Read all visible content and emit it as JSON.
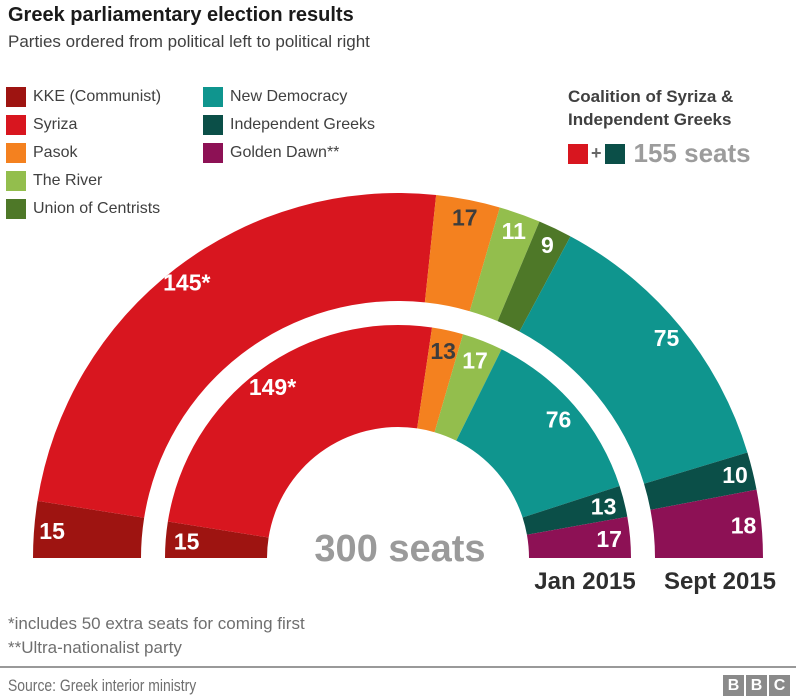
{
  "header": {
    "title": "Greek parliamentary election results",
    "subtitle": "Parties ordered from political left to political right"
  },
  "legend": {
    "column1": [
      {
        "label": "KKE (Communist)",
        "color": "#9e1411"
      },
      {
        "label": "Syriza",
        "color": "#d8161f"
      },
      {
        "label": "Pasok",
        "color": "#f4811f"
      },
      {
        "label": "The River",
        "color": "#93be4d"
      },
      {
        "label": "Union of Centrists",
        "color": "#4e7828"
      }
    ],
    "column2": [
      {
        "label": "New Democracy",
        "color": "#0f958e"
      },
      {
        "label": "Independent Greeks",
        "color": "#0b4f48"
      },
      {
        "label": "Golden Dawn**",
        "color": "#8d1155"
      }
    ]
  },
  "coalition": {
    "heading_line1": "Coalition of Syriza &",
    "heading_line2": "Independent Greeks",
    "plus": "+",
    "swatch_colors": [
      "#d8161f",
      "#0b4f48"
    ],
    "seats_label": "155 seats"
  },
  "chart_data": {
    "type": "half-donut",
    "title": "Greek parliamentary election results",
    "center_label": "300 seats",
    "total_seats": 300,
    "legend_position": "top-left",
    "rings": [
      {
        "axis_label": "Sept 2015",
        "outer_radius": 365,
        "inner_radius": 257,
        "label_radius": 347,
        "segments": [
          {
            "party": "KKE (Communist)",
            "seats": 15,
            "label": "15",
            "color": "#9e1411",
            "label_color": "#ffffff"
          },
          {
            "party": "Syriza",
            "seats": 145,
            "label": "145*",
            "color": "#d8161f",
            "label_color": "#ffffff"
          },
          {
            "party": "Pasok",
            "seats": 17,
            "label": "17",
            "color": "#f4811f",
            "label_color": "#3d3d3d"
          },
          {
            "party": "The River",
            "seats": 11,
            "label": "11",
            "color": "#93be4d",
            "label_color": "#ffffff"
          },
          {
            "party": "Union of Centrists",
            "seats": 9,
            "label": "9",
            "color": "#4e7828",
            "label_color": "#ffffff"
          },
          {
            "party": "New Democracy",
            "seats": 75,
            "label": "75",
            "color": "#0f958e",
            "label_color": "#ffffff"
          },
          {
            "party": "Independent Greeks",
            "seats": 10,
            "label": "10",
            "color": "#0b4f48",
            "label_color": "#ffffff"
          },
          {
            "party": "Golden Dawn",
            "seats": 18,
            "label": "18",
            "color": "#8d1155",
            "label_color": "#ffffff"
          }
        ]
      },
      {
        "axis_label": "Jan 2015",
        "outer_radius": 233,
        "inner_radius": 131,
        "label_radius": 212,
        "segments": [
          {
            "party": "KKE (Communist)",
            "seats": 15,
            "label": "15",
            "color": "#9e1411",
            "label_color": "#ffffff"
          },
          {
            "party": "Syriza",
            "seats": 149,
            "label": "149*",
            "color": "#d8161f",
            "label_color": "#ffffff"
          },
          {
            "party": "Pasok",
            "seats": 13,
            "label": "13",
            "color": "#f4811f",
            "label_color": "#3d3d3d"
          },
          {
            "party": "The River",
            "seats": 17,
            "label": "17",
            "color": "#93be4d",
            "label_color": "#ffffff"
          },
          {
            "party": "New Democracy",
            "seats": 76,
            "label": "76",
            "color": "#0f958e",
            "label_color": "#ffffff"
          },
          {
            "party": "Independent Greeks",
            "seats": 13,
            "label": "13",
            "color": "#0b4f48",
            "label_color": "#ffffff"
          },
          {
            "party": "Golden Dawn",
            "seats": 17,
            "label": "17",
            "color": "#8d1155",
            "label_color": "#ffffff"
          }
        ]
      }
    ]
  },
  "footnotes": [
    "*includes 50 extra seats for coming first",
    "**Ultra-nationalist party"
  ],
  "source": "Source: Greek interior ministry",
  "logo": {
    "letters": [
      "B",
      "B",
      "C"
    ]
  }
}
